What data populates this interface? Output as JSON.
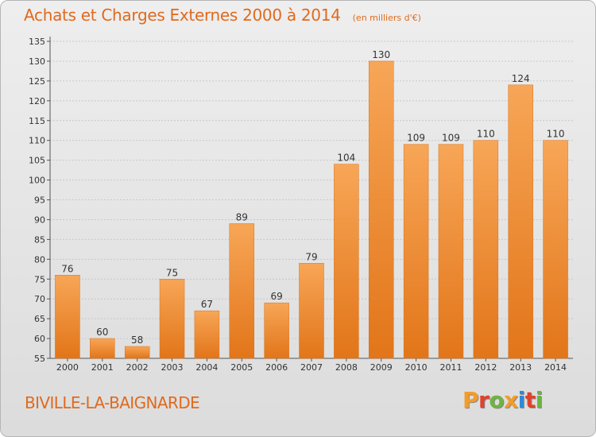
{
  "header": {
    "title": "Achats et Charges Externes 2000 à 2014",
    "unit": "(en milliers d'€)"
  },
  "footer": {
    "commune": "BIVILLE-LA-BAIGNARDE",
    "brand": "Proxiti",
    "brand_colors": [
      "#f39c2a",
      "#e2422b",
      "#6fb43f",
      "#f39c2a",
      "#2f88d8",
      "#e2422b",
      "#6fb43f"
    ]
  },
  "chart_data": {
    "type": "bar",
    "categories": [
      "2000",
      "2001",
      "2002",
      "2003",
      "2004",
      "2005",
      "2006",
      "2007",
      "2008",
      "2009",
      "2010",
      "2011",
      "2012",
      "2013",
      "2014"
    ],
    "values": [
      76,
      60,
      58,
      75,
      67,
      89,
      69,
      79,
      104,
      130,
      109,
      109,
      110,
      124,
      110
    ],
    "title": "Achats et Charges Externes 2000 à 2014",
    "ylim": [
      55,
      135
    ],
    "yticks": [
      55,
      60,
      65,
      70,
      75,
      80,
      85,
      90,
      95,
      100,
      105,
      110,
      115,
      120,
      125,
      130,
      135
    ],
    "grid": true,
    "bar_color": "#f08a2c"
  }
}
